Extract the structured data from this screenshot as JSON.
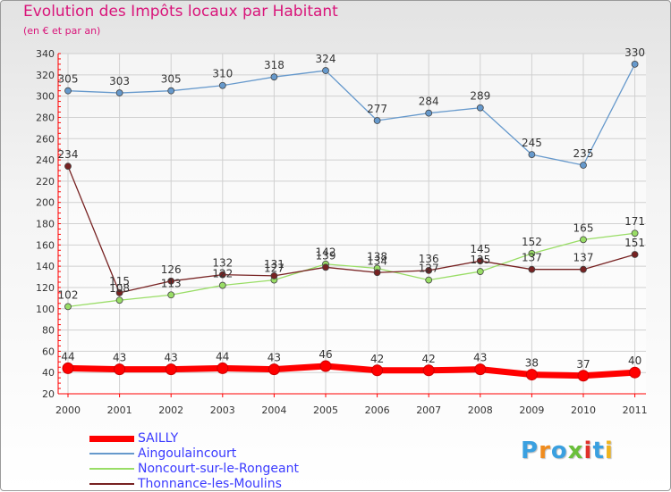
{
  "title": "Evolution des Impôts locaux par Habitant",
  "subtitle": "(en € et par an)",
  "logo": "Proxiti",
  "colors": {
    "title": "#d9157a",
    "axis": "#ff0000",
    "grid": "#d0d0d0",
    "legend_text": "#3a3aff"
  },
  "chart_data": {
    "type": "line",
    "x": [
      2000,
      2001,
      2002,
      2003,
      2004,
      2005,
      2006,
      2007,
      2008,
      2009,
      2010,
      2011
    ],
    "ylim": [
      20,
      340
    ],
    "yticks": [
      20,
      40,
      60,
      80,
      100,
      120,
      140,
      160,
      180,
      200,
      220,
      240,
      260,
      280,
      300,
      320,
      340
    ],
    "grid": true,
    "legend_position": "bottom-left",
    "series": [
      {
        "name": "SAILLY",
        "color": "#ff0000",
        "values": [
          44,
          43,
          43,
          44,
          43,
          46,
          42,
          42,
          43,
          38,
          37,
          40
        ]
      },
      {
        "name": "Aingoulaincourt",
        "color": "#6699cc",
        "values": [
          305,
          303,
          305,
          310,
          318,
          324,
          277,
          284,
          289,
          245,
          235,
          330
        ]
      },
      {
        "name": "Noncourt-sur-le-Rongeant",
        "color": "#99dd66",
        "values": [
          102,
          108,
          113,
          122,
          127,
          142,
          138,
          127,
          135,
          152,
          165,
          171
        ]
      },
      {
        "name": "Thonnance-les-Moulins",
        "color": "#772222",
        "values": [
          234,
          115,
          126,
          132,
          131,
          139,
          134,
          136,
          145,
          137,
          137,
          151
        ]
      }
    ]
  }
}
